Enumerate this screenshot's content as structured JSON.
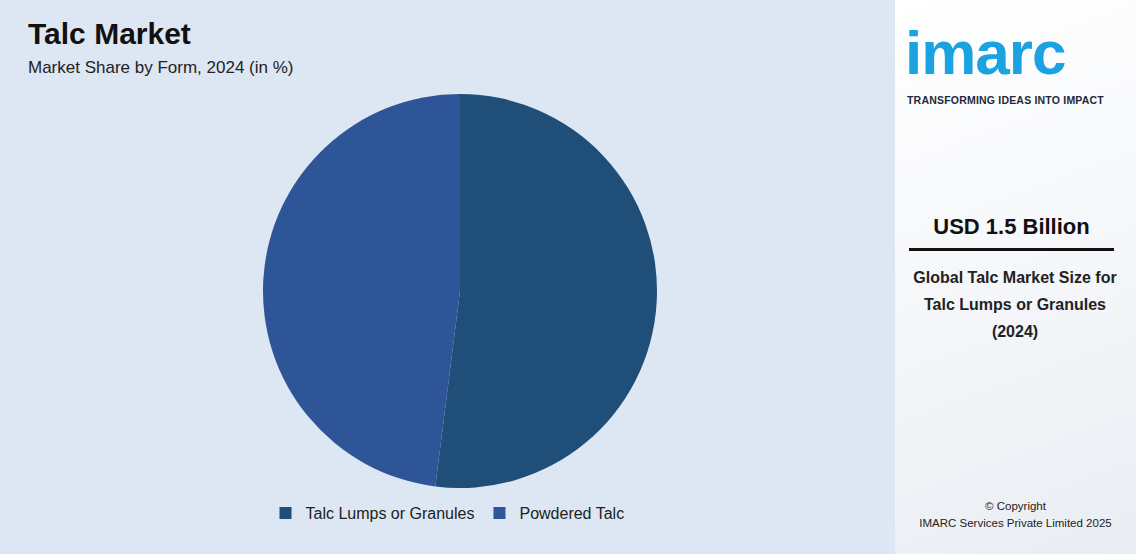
{
  "chart_data": {
    "type": "pie",
    "title": "Talc Market",
    "subtitle": "Market Share by Form, 2024 (in %)",
    "categories": [
      "Talc Lumps or Granules",
      "Powdered Talc"
    ],
    "values": [
      52,
      48
    ],
    "colors": [
      "#1f4e79",
      "#2e5597"
    ],
    "legend": "bottom",
    "data_labels": false
  },
  "sidebar": {
    "logo": "imarc",
    "tagline": "TRANSFORMING IDEAS INTO IMPACT",
    "headline": "USD 1.5 Billion",
    "description": "Global Talc Market Size for Talc Lumps or Granules (2024)",
    "copyright": "© Copyright",
    "publisher": "IMARC Services Private Limited 2025"
  }
}
